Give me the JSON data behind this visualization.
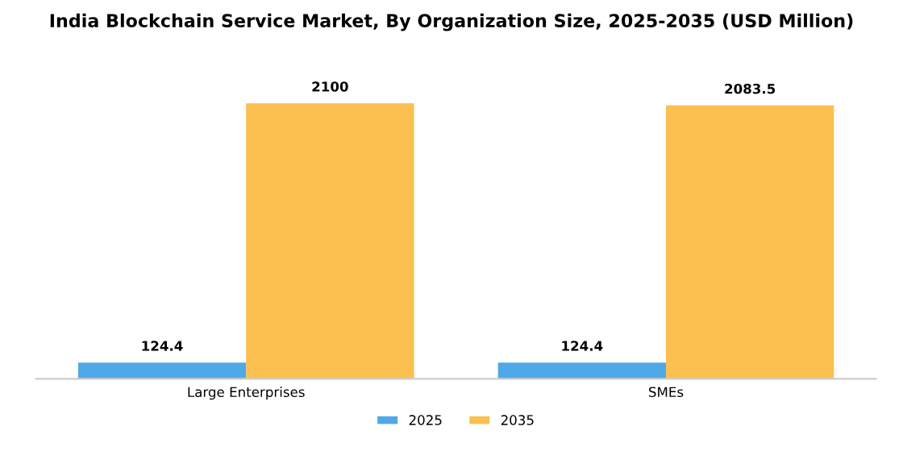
{
  "chart_data": {
    "type": "bar",
    "title": "India Blockchain Service Market, By Organization Size, 2025-2035 (USD Million)",
    "categories": [
      "Large Enterprises",
      "SMEs"
    ],
    "series": [
      {
        "name": "2025",
        "color": "#4fa9e8",
        "values": [
          124.4,
          124.4
        ]
      },
      {
        "name": "2035",
        "color": "#fbc04f",
        "values": [
          2100,
          2083.5
        ]
      }
    ],
    "data_labels": true,
    "legend": "bottom",
    "grid": false,
    "tick_labels": "x"
  }
}
